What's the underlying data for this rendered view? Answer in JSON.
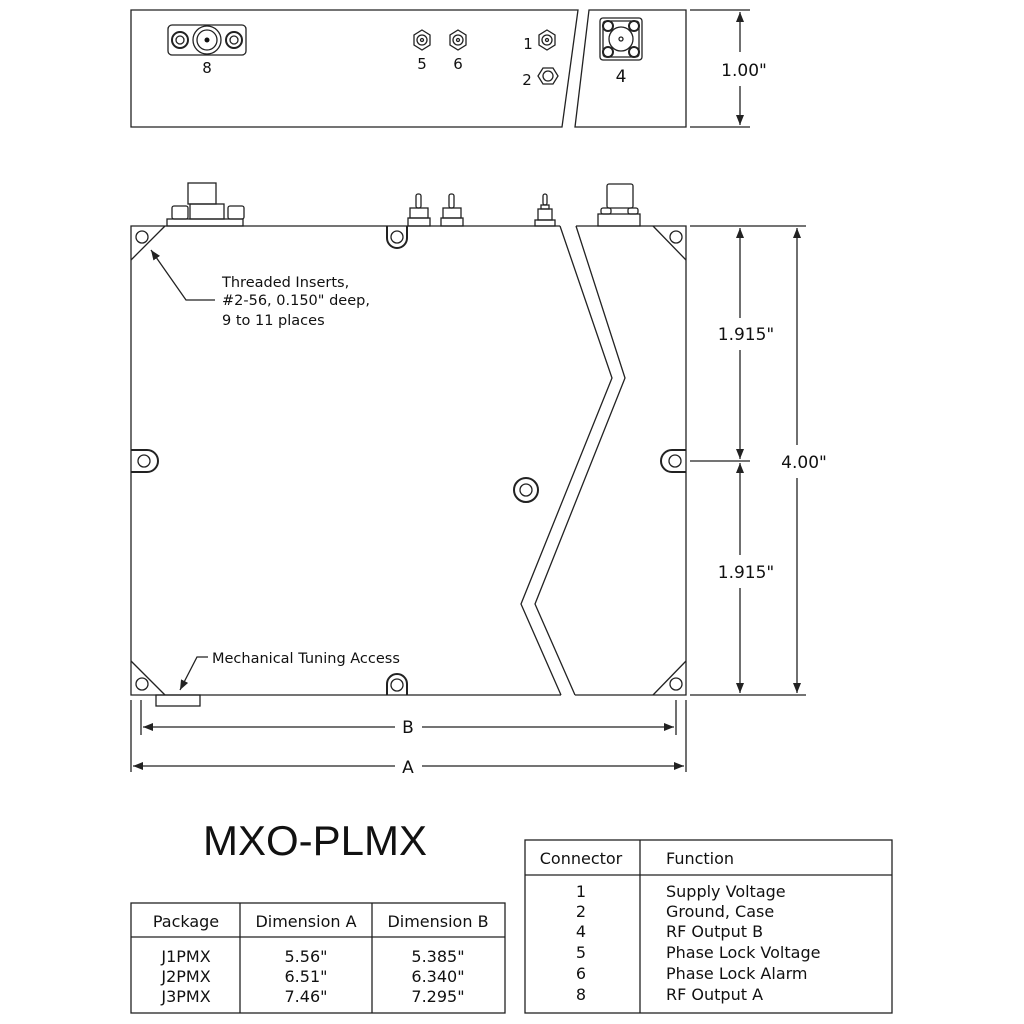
{
  "title": "MXO-PLMX",
  "top_view": {
    "connector_labels": [
      "8",
      "5",
      "6",
      "1",
      "2",
      "4"
    ],
    "height_dim": "1.00\""
  },
  "front_view": {
    "callouts": {
      "threaded_inserts": [
        "Threaded Inserts,",
        "#2-56, 0.150\" deep,",
        "9 to 11 places"
      ],
      "tuning_access": "Mechanical Tuning Access"
    },
    "dims": {
      "upper": "1.915\"",
      "lower": "1.915\"",
      "total": "4.00\"",
      "b": "B",
      "a": "A"
    }
  },
  "package_table": {
    "headers": [
      "Package",
      "Dimension A",
      "Dimension B"
    ],
    "rows": [
      [
        "J1PMX",
        "5.56\"",
        "5.385\""
      ],
      [
        "J2PMX",
        "6.51\"",
        "6.340\""
      ],
      [
        "J3PMX",
        "7.46\"",
        "7.295\""
      ]
    ]
  },
  "connector_table": {
    "headers": [
      "Connector",
      "Function"
    ],
    "rows": [
      [
        "1",
        "Supply Voltage"
      ],
      [
        "2",
        "Ground, Case"
      ],
      [
        "4",
        "RF Output B"
      ],
      [
        "5",
        "Phase Lock Voltage"
      ],
      [
        "6",
        "Phase Lock Alarm"
      ],
      [
        "8",
        "RF Output A"
      ]
    ]
  }
}
